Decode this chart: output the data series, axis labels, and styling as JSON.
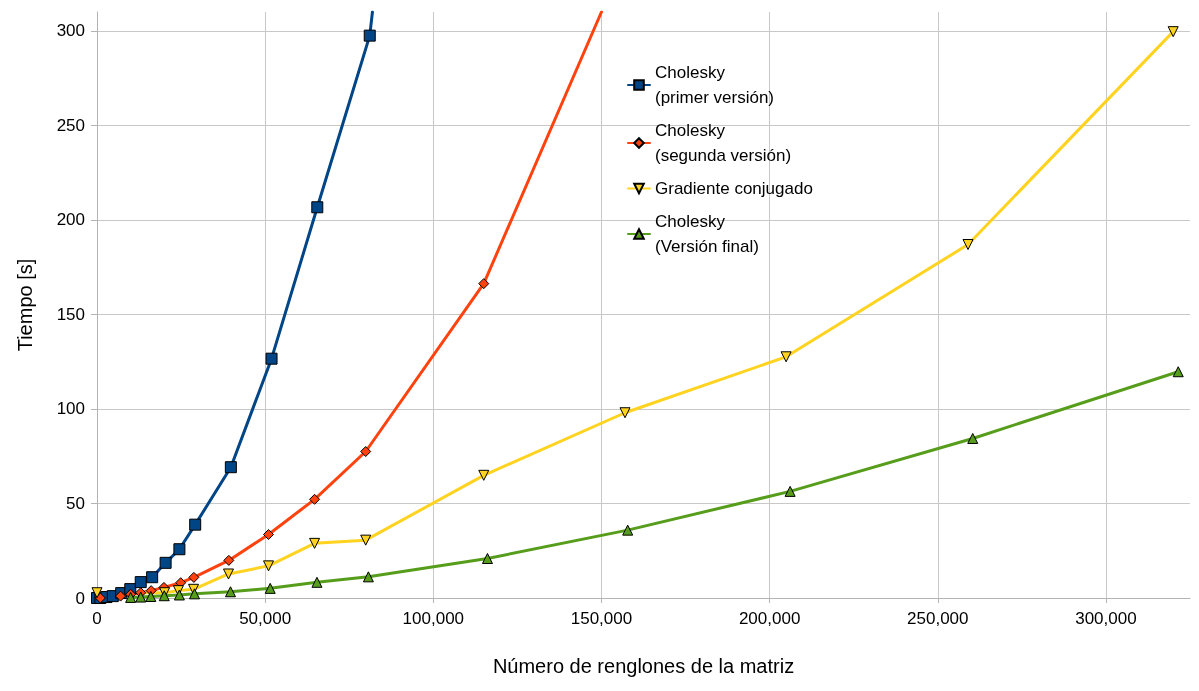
{
  "chart_data": {
    "type": "line",
    "xlabel": "Número de renglones de la matriz",
    "ylabel": "Tiempo [s]",
    "xlim": [
      0,
      325000
    ],
    "xticks": [
      0,
      {
        "value": 50000,
        "label": "50,000"
      },
      {
        "value": 100000,
        "label": "100,000"
      },
      {
        "value": 150000,
        "label": "150,000"
      },
      {
        "value": 200000,
        "label": "200,000"
      },
      {
        "value": 250000,
        "label": "250,000"
      },
      {
        "value": 300000,
        "label": "300,000"
      }
    ],
    "ylim": [
      0,
      310
    ],
    "yticks": [
      0,
      50,
      100,
      150,
      200,
      250,
      300
    ],
    "grid": true,
    "legend": "top right",
    "line_style": "solid",
    "series": [
      {
        "name": "Cholesky\n(primer versión)",
        "color": "#004586",
        "marker": "square",
        "x": [
          0,
          1000,
          2800,
          4700,
          7200,
          9900,
          13000,
          16400,
          20400,
          24500,
          29200,
          39800,
          51900,
          65500,
          81100,
          81900
        ],
        "values": [
          0,
          0,
          0.5,
          1,
          2.6,
          4.7,
          8.4,
          11,
          18.6,
          25.8,
          38.8,
          69.2,
          126.6,
          206.7,
          297.5,
          310
        ]
      },
      {
        "name": "Cholesky\n(segunda versión)",
        "color": "#ff420e",
        "marker": "diamond",
        "x": [
          1000,
          7000,
          10000,
          13000,
          16100,
          19900,
          24900,
          28800,
          39200,
          51000,
          64700,
          79900,
          115000,
          150000
        ],
        "values": [
          0,
          1,
          2,
          2.8,
          3.9,
          5.6,
          8.1,
          10.9,
          19.9,
          33.6,
          52.2,
          77.5,
          166.3,
          310
        ]
      },
      {
        "name": "Gradiente conjugado",
        "color": "#ffd320",
        "marker": "triangle-down",
        "x": [
          0,
          20100,
          24200,
          28700,
          39100,
          51000,
          64700,
          79900,
          115000,
          157000,
          204900,
          259000,
          320000
        ],
        "values": [
          2.8,
          2.8,
          3.9,
          4.6,
          12.7,
          17,
          28.9,
          30.6,
          64.9,
          98,
          127.6,
          187,
          299.6
        ]
      },
      {
        "name": "Cholesky\n(Versión final)",
        "color": "#579d1c",
        "marker": "triangle",
        "x": [
          10000,
          13000,
          16000,
          20000,
          24500,
          29000,
          39700,
          51500,
          65400,
          80700,
          116100,
          157800,
          206100,
          260400,
          321500
        ],
        "values": [
          0.3,
          0.5,
          0.8,
          1.2,
          1.6,
          2.2,
          3.3,
          5.1,
          8.3,
          11.2,
          20.9,
          35.9,
          56.4,
          84.4,
          119.7
        ]
      }
    ]
  }
}
